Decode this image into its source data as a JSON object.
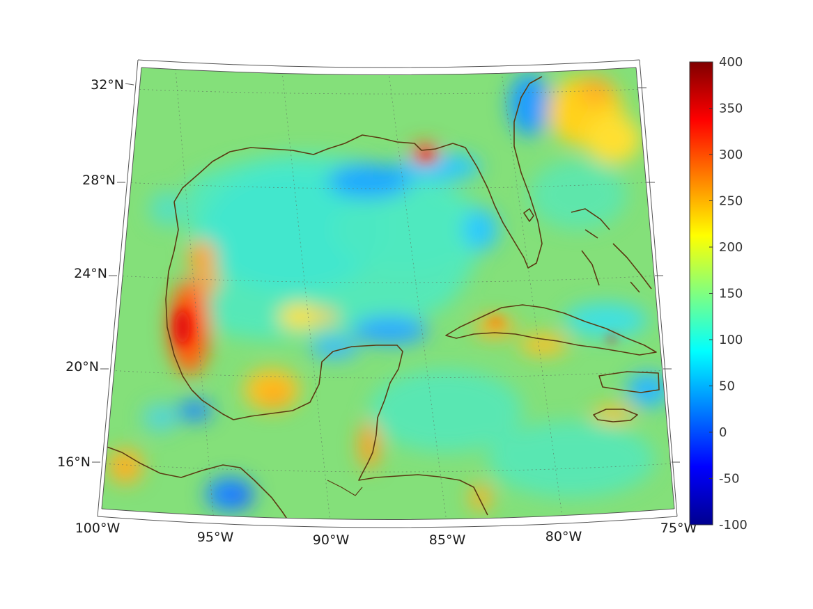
{
  "map": {
    "longitude_labels": [
      "100°W",
      "95°W",
      "90°W",
      "85°W",
      "80°W",
      "75°W"
    ],
    "latitude_labels": [
      "32°N",
      "28°N",
      "24°N",
      "20°N",
      "16°N"
    ]
  },
  "colorbar": {
    "colormap": "jet",
    "min": -100,
    "max": 400,
    "tick_labels": [
      "400",
      "350",
      "300",
      "250",
      "200",
      "150",
      "100",
      "50",
      "0",
      "-50",
      "-100"
    ],
    "colors": [
      "#00008f",
      "#0000ff",
      "#0080ff",
      "#00ffff",
      "#80ff80",
      "#ffff00",
      "#ff8000",
      "#ff0000",
      "#800000"
    ]
  },
  "colors": {
    "coastline": "#5a3a12",
    "background_field": "#7ee07a"
  }
}
